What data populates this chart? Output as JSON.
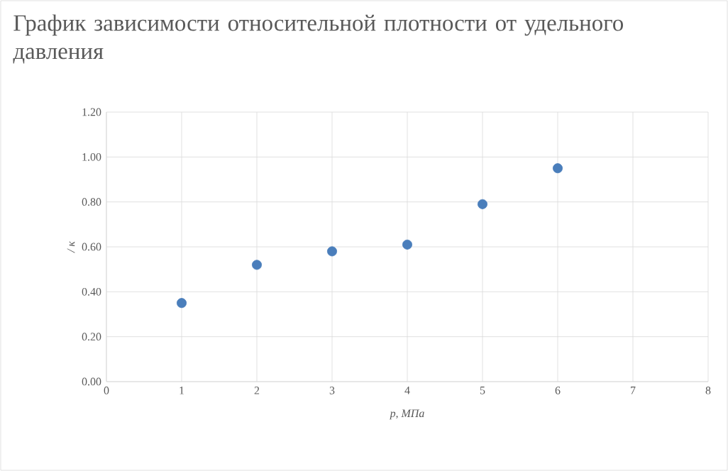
{
  "chart_data": {
    "type": "scatter",
    "title": "График зависимости относительной плотности от удельного давления",
    "xlabel": "p, МПа",
    "ylabel": "/ к",
    "x": [
      1,
      2,
      3,
      4,
      5,
      6
    ],
    "values": [
      0.35,
      0.52,
      0.58,
      0.61,
      0.79,
      0.95
    ],
    "color": "#4a7ebb",
    "marker": "circle",
    "grid": true,
    "xlim": [
      0,
      8
    ],
    "xticks": [
      0,
      1,
      2,
      3,
      4,
      5,
      6,
      7,
      8
    ],
    "ylim": [
      0,
      1.2
    ],
    "yticks": [
      {
        "value": 0,
        "label": "0.00"
      },
      {
        "value": 0.2,
        "label": "0.20"
      },
      {
        "value": 0.4,
        "label": "0.40"
      },
      {
        "value": 0.6,
        "label": "0.60"
      },
      {
        "value": 0.8,
        "label": "0.80"
      },
      {
        "value": 1.0,
        "label": "1.00"
      },
      {
        "value": 1.2,
        "label": "1.20"
      }
    ]
  }
}
